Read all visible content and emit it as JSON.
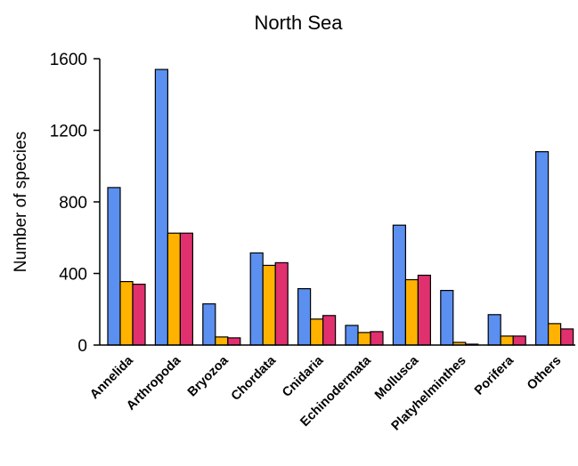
{
  "chart_data": {
    "type": "bar",
    "title": "North Sea",
    "xlabel": "",
    "ylabel": "Number of species",
    "ylim": [
      0,
      1600
    ],
    "yticks": [
      0,
      400,
      800,
      1200,
      1600
    ],
    "grid": false,
    "legend": "none",
    "categories": [
      "Annelida",
      "Arthropoda",
      "Bryozoa",
      "Chordata",
      "Cnidaria",
      "Echinodermata",
      "Mollusca",
      "Platyhelminthes",
      "Porifera",
      "Others"
    ],
    "series": [
      {
        "color": "#5b8ff0",
        "values": [
          880,
          1540,
          230,
          515,
          315,
          110,
          670,
          305,
          170,
          1080
        ]
      },
      {
        "color": "#ffb300",
        "values": [
          355,
          625,
          45,
          445,
          145,
          70,
          365,
          15,
          50,
          120
        ]
      },
      {
        "color": "#e0306e",
        "values": [
          340,
          625,
          40,
          460,
          165,
          75,
          390,
          5,
          50,
          90
        ]
      }
    ]
  }
}
